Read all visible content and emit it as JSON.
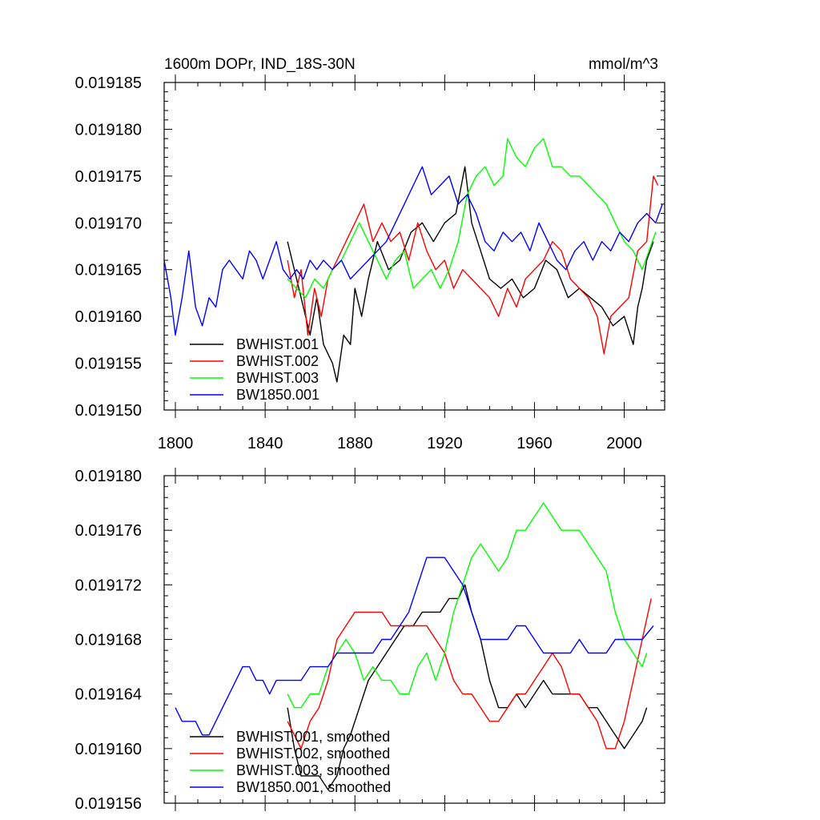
{
  "chart_data": [
    {
      "type": "line",
      "title_left": "1600m DOPr, IND_18S-30N",
      "title_right": "mmol/m^3",
      "xlabel": "",
      "ylabel": "",
      "xlim": [
        1795,
        2018
      ],
      "ylim": [
        0.01915,
        0.019185
      ],
      "x_ticks": [
        1800,
        1840,
        1880,
        1920,
        1960,
        2000
      ],
      "x_tick_labels": [
        "1800",
        "1840",
        "1880",
        "1920",
        "1960",
        "2000"
      ],
      "y_ticks": [
        0.01915,
        0.019155,
        0.01916,
        0.019165,
        0.01917,
        0.019175,
        0.01918,
        0.019185
      ],
      "y_tick_labels": [
        "0.019150",
        "0.019155",
        "0.019160",
        "0.019165",
        "0.019170",
        "0.019175",
        "0.019180",
        "0.019185"
      ],
      "grid": false,
      "legend_position": "bottom-left",
      "series": [
        {
          "name": "BWHIST.001",
          "color": "#000000",
          "x": [
            1850,
            1855,
            1860,
            1863,
            1866,
            1870,
            1872,
            1875,
            1878,
            1880,
            1883,
            1886,
            1890,
            1895,
            1900,
            1905,
            1910,
            1915,
            1920,
            1925,
            1929,
            1932,
            1936,
            1940,
            1945,
            1950,
            1955,
            1960,
            1965,
            1970,
            1975,
            1980,
            1985,
            1990,
            1995,
            2000,
            2004,
            2006,
            2008,
            2010,
            2013
          ],
          "values": [
            0.019168,
            0.019163,
            0.019158,
            0.019162,
            0.019157,
            0.019155,
            0.019153,
            0.019158,
            0.019157,
            0.019163,
            0.01916,
            0.019164,
            0.019168,
            0.019165,
            0.019166,
            0.019169,
            0.01917,
            0.019168,
            0.01917,
            0.019171,
            0.019176,
            0.01917,
            0.019167,
            0.019164,
            0.019163,
            0.019164,
            0.019162,
            0.019163,
            0.019166,
            0.019165,
            0.019162,
            0.019163,
            0.019162,
            0.019161,
            0.019159,
            0.01916,
            0.019157,
            0.019161,
            0.019163,
            0.019166,
            0.019168
          ]
        },
        {
          "name": "BWHIST.002",
          "color": "#ff0000",
          "x": [
            1850,
            1853,
            1856,
            1859,
            1862,
            1865,
            1868,
            1872,
            1876,
            1880,
            1884,
            1888,
            1892,
            1896,
            1900,
            1904,
            1908,
            1912,
            1916,
            1920,
            1924,
            1928,
            1932,
            1936,
            1940,
            1944,
            1948,
            1952,
            1956,
            1960,
            1964,
            1968,
            1972,
            1976,
            1980,
            1984,
            1988,
            1991,
            1994,
            1998,
            2002,
            2006,
            2010,
            2013,
            2015
          ],
          "values": [
            0.019166,
            0.019162,
            0.019165,
            0.019158,
            0.019163,
            0.01916,
            0.019164,
            0.019166,
            0.019168,
            0.01917,
            0.019172,
            0.019168,
            0.01917,
            0.019168,
            0.019169,
            0.019166,
            0.01917,
            0.019167,
            0.019165,
            0.019166,
            0.019163,
            0.019165,
            0.019164,
            0.019163,
            0.019162,
            0.01916,
            0.019163,
            0.019161,
            0.019164,
            0.019165,
            0.019166,
            0.019168,
            0.019167,
            0.019164,
            0.019163,
            0.019162,
            0.01916,
            0.019156,
            0.01916,
            0.019161,
            0.019162,
            0.019167,
            0.019168,
            0.019175,
            0.019174
          ]
        },
        {
          "name": "BWHIST.003",
          "color": "#00ff00",
          "x": [
            1850,
            1854,
            1858,
            1862,
            1866,
            1870,
            1874,
            1878,
            1882,
            1886,
            1890,
            1894,
            1898,
            1902,
            1906,
            1910,
            1914,
            1918,
            1922,
            1926,
            1930,
            1934,
            1938,
            1942,
            1946,
            1948,
            1952,
            1956,
            1960,
            1964,
            1968,
            1972,
            1976,
            1980,
            1984,
            1988,
            1992,
            1996,
            2000,
            2004,
            2008,
            2011,
            2014
          ],
          "values": [
            0.019164,
            0.019163,
            0.019162,
            0.019164,
            0.019163,
            0.019165,
            0.019166,
            0.019168,
            0.01917,
            0.019168,
            0.019166,
            0.019164,
            0.019166,
            0.019167,
            0.019163,
            0.019164,
            0.019165,
            0.019163,
            0.019165,
            0.019168,
            0.019173,
            0.019175,
            0.019176,
            0.019174,
            0.019175,
            0.019179,
            0.019177,
            0.019176,
            0.019178,
            0.019179,
            0.019176,
            0.019176,
            0.019175,
            0.019175,
            0.019174,
            0.019173,
            0.019172,
            0.01917,
            0.019168,
            0.019167,
            0.019165,
            0.019167,
            0.019169
          ]
        },
        {
          "name": "BW1850.001",
          "color": "#0000ff",
          "x": [
            1795,
            1798,
            1800,
            1803,
            1806,
            1809,
            1812,
            1815,
            1818,
            1821,
            1824,
            1827,
            1830,
            1833,
            1836,
            1839,
            1842,
            1845,
            1848,
            1851,
            1854,
            1857,
            1860,
            1863,
            1866,
            1870,
            1874,
            1878,
            1882,
            1886,
            1890,
            1894,
            1898,
            1902,
            1906,
            1910,
            1914,
            1918,
            1922,
            1926,
            1930,
            1934,
            1938,
            1942,
            1946,
            1950,
            1954,
            1958,
            1962,
            1966,
            1970,
            1974,
            1978,
            1982,
            1986,
            1990,
            1994,
            1998,
            2002,
            2006,
            2010,
            2014,
            2017
          ],
          "values": [
            0.019166,
            0.019162,
            0.019158,
            0.019162,
            0.019167,
            0.019161,
            0.019159,
            0.019162,
            0.019161,
            0.019165,
            0.019166,
            0.019165,
            0.019164,
            0.019167,
            0.019166,
            0.019164,
            0.019166,
            0.019168,
            0.019165,
            0.019164,
            0.019165,
            0.019164,
            0.019166,
            0.019165,
            0.019166,
            0.019165,
            0.019166,
            0.019164,
            0.019165,
            0.019166,
            0.019167,
            0.019168,
            0.01917,
            0.019172,
            0.019174,
            0.019176,
            0.019173,
            0.019174,
            0.019175,
            0.019172,
            0.019173,
            0.019171,
            0.019168,
            0.019167,
            0.019169,
            0.019168,
            0.019169,
            0.019167,
            0.01917,
            0.019168,
            0.019166,
            0.019165,
            0.019167,
            0.019168,
            0.019166,
            0.019168,
            0.019167,
            0.019169,
            0.019168,
            0.01917,
            0.019171,
            0.01917,
            0.019172
          ]
        }
      ]
    },
    {
      "type": "line",
      "title_left": "",
      "title_right": "",
      "xlabel": "",
      "ylabel": "",
      "xlim": [
        1795,
        2018
      ],
      "ylim": [
        0.019156,
        0.01918
      ],
      "x_ticks": [
        1800,
        1840,
        1880,
        1920,
        1960,
        2000
      ],
      "x_tick_labels": [],
      "y_ticks": [
        0.019156,
        0.01916,
        0.019164,
        0.019168,
        0.019172,
        0.019176,
        0.01918
      ],
      "y_tick_labels": [
        "0.019156",
        "0.019160",
        "0.019164",
        "0.019168",
        "0.019172",
        "0.019176",
        "0.019180"
      ],
      "grid": false,
      "legend_position": "bottom-left",
      "series": [
        {
          "name": "BWHIST.001, smoothed",
          "color": "#000000",
          "x": [
            1850,
            1853,
            1856,
            1860,
            1864,
            1868,
            1872,
            1875,
            1878,
            1882,
            1886,
            1890,
            1894,
            1898,
            1902,
            1906,
            1910,
            1914,
            1918,
            1922,
            1926,
            1929,
            1932,
            1936,
            1940,
            1944,
            1948,
            1952,
            1956,
            1960,
            1964,
            1968,
            1972,
            1976,
            1980,
            1984,
            1988,
            1992,
            1996,
            2000,
            2004,
            2008,
            2010
          ],
          "values": [
            0.019163,
            0.01916,
            0.019158,
            0.019158,
            0.019158,
            0.019157,
            0.019158,
            0.01916,
            0.019161,
            0.019163,
            0.019165,
            0.019166,
            0.019167,
            0.019168,
            0.019169,
            0.019169,
            0.01917,
            0.01917,
            0.01917,
            0.019171,
            0.019171,
            0.019172,
            0.01917,
            0.019168,
            0.019165,
            0.019163,
            0.019163,
            0.019164,
            0.019163,
            0.019164,
            0.019165,
            0.019164,
            0.019164,
            0.019164,
            0.019164,
            0.019163,
            0.019163,
            0.019162,
            0.019161,
            0.01916,
            0.019161,
            0.019162,
            0.019163
          ]
        },
        {
          "name": "BWHIST.002, smoothed",
          "color": "#ff0000",
          "x": [
            1850,
            1853,
            1856,
            1860,
            1864,
            1868,
            1872,
            1876,
            1880,
            1884,
            1888,
            1892,
            1896,
            1900,
            1904,
            1908,
            1912,
            1916,
            1920,
            1924,
            1928,
            1932,
            1936,
            1940,
            1944,
            1948,
            1952,
            1956,
            1960,
            1964,
            1968,
            1972,
            1976,
            1980,
            1984,
            1988,
            1992,
            1996,
            2000,
            2004,
            2008,
            2012
          ],
          "values": [
            0.019162,
            0.019161,
            0.01916,
            0.019162,
            0.019163,
            0.019165,
            0.019168,
            0.019169,
            0.01917,
            0.01917,
            0.01917,
            0.01917,
            0.019169,
            0.019169,
            0.019169,
            0.019169,
            0.019169,
            0.019168,
            0.019167,
            0.019165,
            0.019164,
            0.019164,
            0.019163,
            0.019162,
            0.019162,
            0.019163,
            0.019164,
            0.019164,
            0.019165,
            0.019166,
            0.019167,
            0.019166,
            0.019164,
            0.019164,
            0.019163,
            0.019162,
            0.01916,
            0.01916,
            0.019162,
            0.019165,
            0.019168,
            0.019171
          ]
        },
        {
          "name": "BWHIST.003, smoothed",
          "color": "#00ff00",
          "x": [
            1850,
            1853,
            1856,
            1860,
            1864,
            1868,
            1872,
            1876,
            1880,
            1884,
            1888,
            1892,
            1896,
            1900,
            1904,
            1908,
            1912,
            1916,
            1920,
            1924,
            1928,
            1932,
            1936,
            1940,
            1944,
            1948,
            1952,
            1956,
            1960,
            1964,
            1968,
            1972,
            1976,
            1980,
            1984,
            1988,
            1992,
            1996,
            2000,
            2004,
            2008,
            2010
          ],
          "values": [
            0.019164,
            0.019163,
            0.019163,
            0.019164,
            0.019164,
            0.019166,
            0.019167,
            0.019168,
            0.019167,
            0.019165,
            0.019166,
            0.019165,
            0.019165,
            0.019164,
            0.019164,
            0.019166,
            0.019167,
            0.019165,
            0.019167,
            0.01917,
            0.019172,
            0.019174,
            0.019175,
            0.019174,
            0.019173,
            0.019174,
            0.019176,
            0.019176,
            0.019177,
            0.019178,
            0.019177,
            0.019176,
            0.019176,
            0.019176,
            0.019175,
            0.019174,
            0.019173,
            0.01917,
            0.019168,
            0.019167,
            0.019166,
            0.019167
          ]
        },
        {
          "name": "BW1850.001, smoothed",
          "color": "#0000ff",
          "x": [
            1800,
            1803,
            1806,
            1809,
            1812,
            1815,
            1818,
            1821,
            1824,
            1827,
            1830,
            1833,
            1836,
            1839,
            1842,
            1845,
            1848,
            1852,
            1856,
            1860,
            1864,
            1868,
            1872,
            1876,
            1880,
            1884,
            1888,
            1892,
            1896,
            1900,
            1904,
            1908,
            1912,
            1916,
            1920,
            1924,
            1928,
            1932,
            1936,
            1940,
            1944,
            1948,
            1952,
            1956,
            1960,
            1964,
            1968,
            1972,
            1976,
            1980,
            1984,
            1988,
            1992,
            1996,
            2000,
            2004,
            2008,
            2013
          ],
          "values": [
            0.019163,
            0.019162,
            0.019162,
            0.019162,
            0.019161,
            0.019161,
            0.019162,
            0.019163,
            0.019164,
            0.019165,
            0.019166,
            0.019166,
            0.019165,
            0.019165,
            0.019164,
            0.019165,
            0.019165,
            0.019165,
            0.019165,
            0.019166,
            0.019166,
            0.019166,
            0.019167,
            0.019167,
            0.019167,
            0.019167,
            0.019167,
            0.019168,
            0.019168,
            0.019169,
            0.01917,
            0.019172,
            0.019174,
            0.019174,
            0.019174,
            0.019173,
            0.019172,
            0.01917,
            0.019168,
            0.019168,
            0.019168,
            0.019168,
            0.019169,
            0.019169,
            0.019168,
            0.019167,
            0.019167,
            0.019167,
            0.019167,
            0.019168,
            0.019167,
            0.019167,
            0.019167,
            0.019168,
            0.019168,
            0.019168,
            0.019168,
            0.019169
          ]
        }
      ]
    }
  ]
}
